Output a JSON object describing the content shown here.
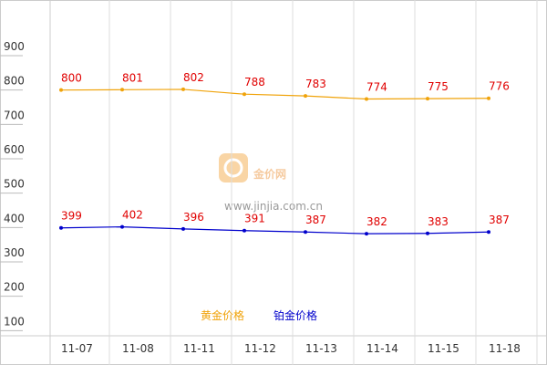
{
  "chart_data": {
    "type": "line",
    "categories": [
      "11-07",
      "11-08",
      "11-11",
      "11-12",
      "11-13",
      "11-14",
      "11-15",
      "11-18"
    ],
    "series": [
      {
        "name": "黄金价格",
        "color": "#f0a30a",
        "values": [
          800,
          801,
          802,
          788,
          783,
          774,
          775,
          776
        ]
      },
      {
        "name": "铂金价格",
        "color": "#0000cc",
        "values": [
          399,
          402,
          396,
          391,
          387,
          382,
          383,
          387
        ]
      }
    ],
    "label_color": "#e00000",
    "ylim": [
      85,
      1062
    ],
    "yticks": [
      100,
      200,
      300,
      400,
      500,
      600,
      700,
      800,
      900
    ],
    "watermark": {
      "brand": "金价网",
      "url": "www.jinjia.com.cn"
    }
  }
}
